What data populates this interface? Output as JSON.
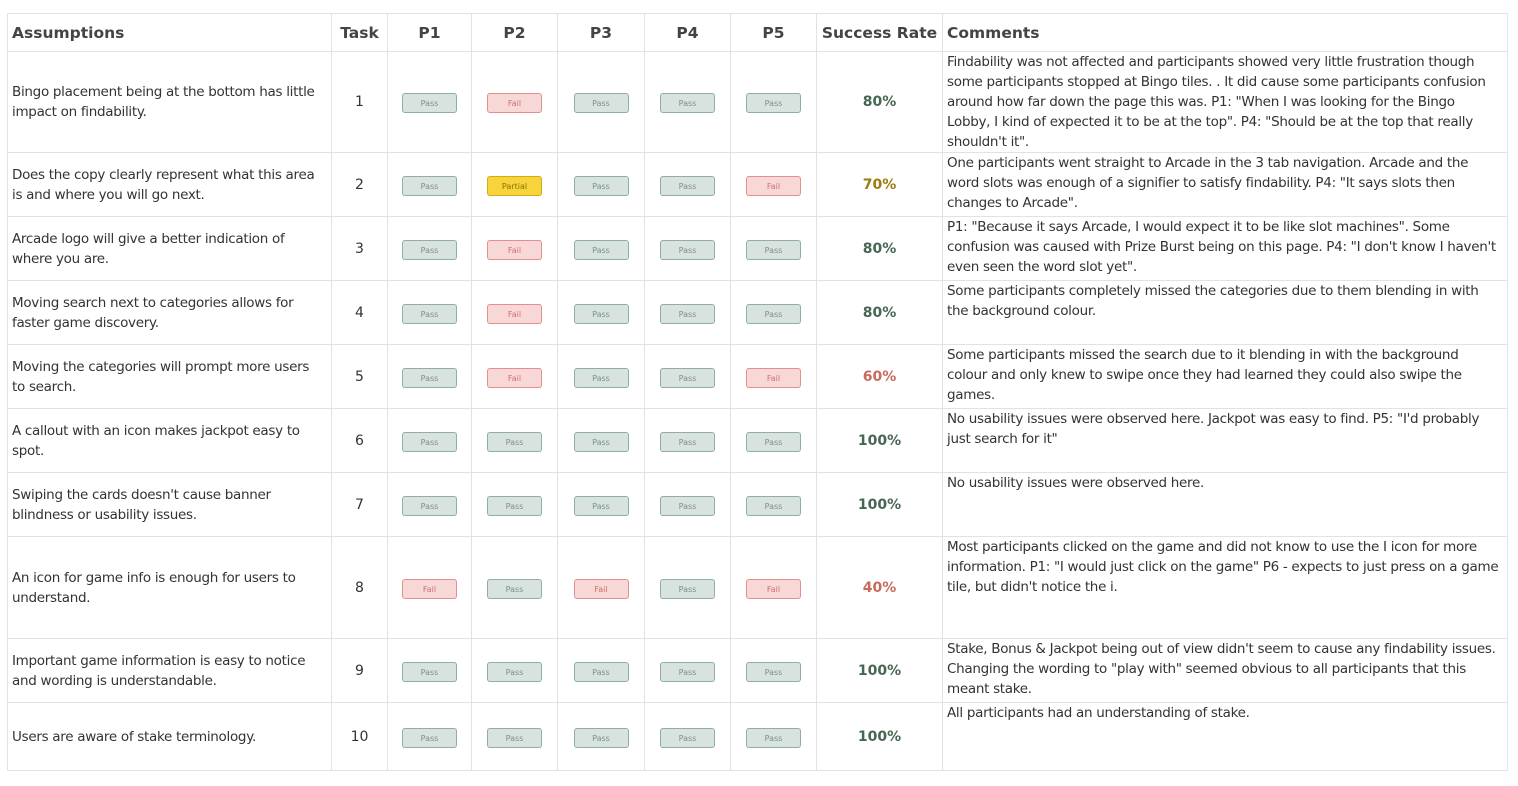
{
  "headers": {
    "assumptions": "Assumptions",
    "task": "Task",
    "p1": "P1",
    "p2": "P2",
    "p3": "P3",
    "p4": "P4",
    "p5": "P5",
    "success_rate": "Success Rate",
    "comments": "Comments"
  },
  "status_colors": {
    "pass": "#d8e3df",
    "fail": "#f8d7d7",
    "partial": "#f7d33c"
  },
  "rows": [
    {
      "assumption": "Bingo placement being at the bottom has little impact on findability.",
      "task": "1",
      "results": [
        {
          "label": "Pass",
          "status": "pass"
        },
        {
          "label": "Fail",
          "status": "fail"
        },
        {
          "label": "Pass",
          "status": "pass"
        },
        {
          "label": "Pass",
          "status": "pass"
        },
        {
          "label": "Pass",
          "status": "pass"
        }
      ],
      "rate": "80%",
      "rate_level": "green",
      "comment": "Findability was not affected and participants showed very little frustration though some participants stopped at Bingo tiles. . It did cause some participants confusion around how far down the page this was. P1: \"When I was looking for the Bingo Lobby, I kind of expected it to be at the top\". P4: \"Should be at the top that really shouldn't it\"."
    },
    {
      "assumption": "Does the copy clearly represent what this area is and where you will go next.",
      "task": "2",
      "results": [
        {
          "label": "Pass",
          "status": "pass"
        },
        {
          "label": "Partial",
          "status": "partial"
        },
        {
          "label": "Pass",
          "status": "pass"
        },
        {
          "label": "Pass",
          "status": "pass"
        },
        {
          "label": "Fail",
          "status": "fail"
        }
      ],
      "rate": "70%",
      "rate_level": "yellow",
      "comment": "One participants went straight to  Arcade in the 3 tab navigation.  Arcade and the word slots was enough of a signifier to satisfy findability. P4: \"It says slots then changes to Arcade\"."
    },
    {
      "assumption": "Arcade logo will give a better indication of where you are.",
      "task": "3",
      "results": [
        {
          "label": "Pass",
          "status": "pass"
        },
        {
          "label": "Fail",
          "status": "fail"
        },
        {
          "label": "Pass",
          "status": "pass"
        },
        {
          "label": "Pass",
          "status": "pass"
        },
        {
          "label": "Pass",
          "status": "pass"
        }
      ],
      "rate": "80%",
      "rate_level": "green",
      "comment": "P1: \"Because it says Arcade, I would expect it to be like slot machines\". Some confusion was caused with Prize Burst being on this page. P4: \"I don't know I haven't even seen the word slot yet\"."
    },
    {
      "assumption": "Moving search next to categories allows for faster game discovery.",
      "task": "4",
      "results": [
        {
          "label": "Pass",
          "status": "pass"
        },
        {
          "label": "Fail",
          "status": "fail"
        },
        {
          "label": "Pass",
          "status": "pass"
        },
        {
          "label": "Pass",
          "status": "pass"
        },
        {
          "label": "Pass",
          "status": "pass"
        }
      ],
      "rate": "80%",
      "rate_level": "green",
      "comment": "Some participants completely missed the categories due to them blending in with the background colour."
    },
    {
      "assumption": "Moving the categories will prompt more users to search.",
      "task": "5",
      "results": [
        {
          "label": "Pass",
          "status": "pass"
        },
        {
          "label": "Fail",
          "status": "fail"
        },
        {
          "label": "Pass",
          "status": "pass"
        },
        {
          "label": "Pass",
          "status": "pass"
        },
        {
          "label": "Fail",
          "status": "fail"
        }
      ],
      "rate": "60%",
      "rate_level": "red",
      "comment": "Some participants missed the search due to it blending in with the background colour and only knew to swipe once they had learned they could also swipe the games."
    },
    {
      "assumption": "A callout with an icon makes jackpot easy to spot.",
      "task": "6",
      "results": [
        {
          "label": "Pass",
          "status": "pass"
        },
        {
          "label": "Pass",
          "status": "pass"
        },
        {
          "label": "Pass",
          "status": "pass"
        },
        {
          "label": "Pass",
          "status": "pass"
        },
        {
          "label": "Pass",
          "status": "pass"
        }
      ],
      "rate": "100%",
      "rate_level": "green",
      "comment": "No usability issues were observed here. Jackpot was easy to find. P5: \"I'd probably just search for it\""
    },
    {
      "assumption": "Swiping the cards doesn't cause banner blindness or usability issues.",
      "task": "7",
      "results": [
        {
          "label": "Pass",
          "status": "pass"
        },
        {
          "label": "Pass",
          "status": "pass"
        },
        {
          "label": "Pass",
          "status": "pass"
        },
        {
          "label": "Pass",
          "status": "pass"
        },
        {
          "label": "Pass",
          "status": "pass"
        }
      ],
      "rate": "100%",
      "rate_level": "green",
      "comment": "No usability issues were observed here."
    },
    {
      "assumption": "An icon for game info is enough for users to understand.",
      "task": "8",
      "results": [
        {
          "label": "Fail",
          "status": "fail"
        },
        {
          "label": "Pass",
          "status": "pass"
        },
        {
          "label": "Fail",
          "status": "fail"
        },
        {
          "label": "Pass",
          "status": "pass"
        },
        {
          "label": "Fail",
          "status": "fail"
        }
      ],
      "rate": "40%",
      "rate_level": "red",
      "comment": "Most participants clicked on the game and did not know to use the I icon for more information. P1: \"I would just click on the game\" P6 - expects to just press on a game tile, but didn't notice the i."
    },
    {
      "assumption": "Important game information is easy to notice and wording is understandable.",
      "task": "9",
      "results": [
        {
          "label": "Pass",
          "status": "pass"
        },
        {
          "label": "Pass",
          "status": "pass"
        },
        {
          "label": "Pass",
          "status": "pass"
        },
        {
          "label": "Pass",
          "status": "pass"
        },
        {
          "label": "Pass",
          "status": "pass"
        }
      ],
      "rate": "100%",
      "rate_level": "green",
      "comment": "Stake, Bonus & Jackpot being out of view didn't seem to cause any findability issues. Changing the wording to \"play with\" seemed obvious to all participants that this meant stake."
    },
    {
      "assumption": "Users are aware of stake terminology.",
      "task": "10",
      "results": [
        {
          "label": "Pass",
          "status": "pass"
        },
        {
          "label": "Pass",
          "status": "pass"
        },
        {
          "label": "Pass",
          "status": "pass"
        },
        {
          "label": "Pass",
          "status": "pass"
        },
        {
          "label": "Pass",
          "status": "pass"
        }
      ],
      "rate": "100%",
      "rate_level": "green",
      "comment": "All participants had an understanding of stake."
    }
  ]
}
